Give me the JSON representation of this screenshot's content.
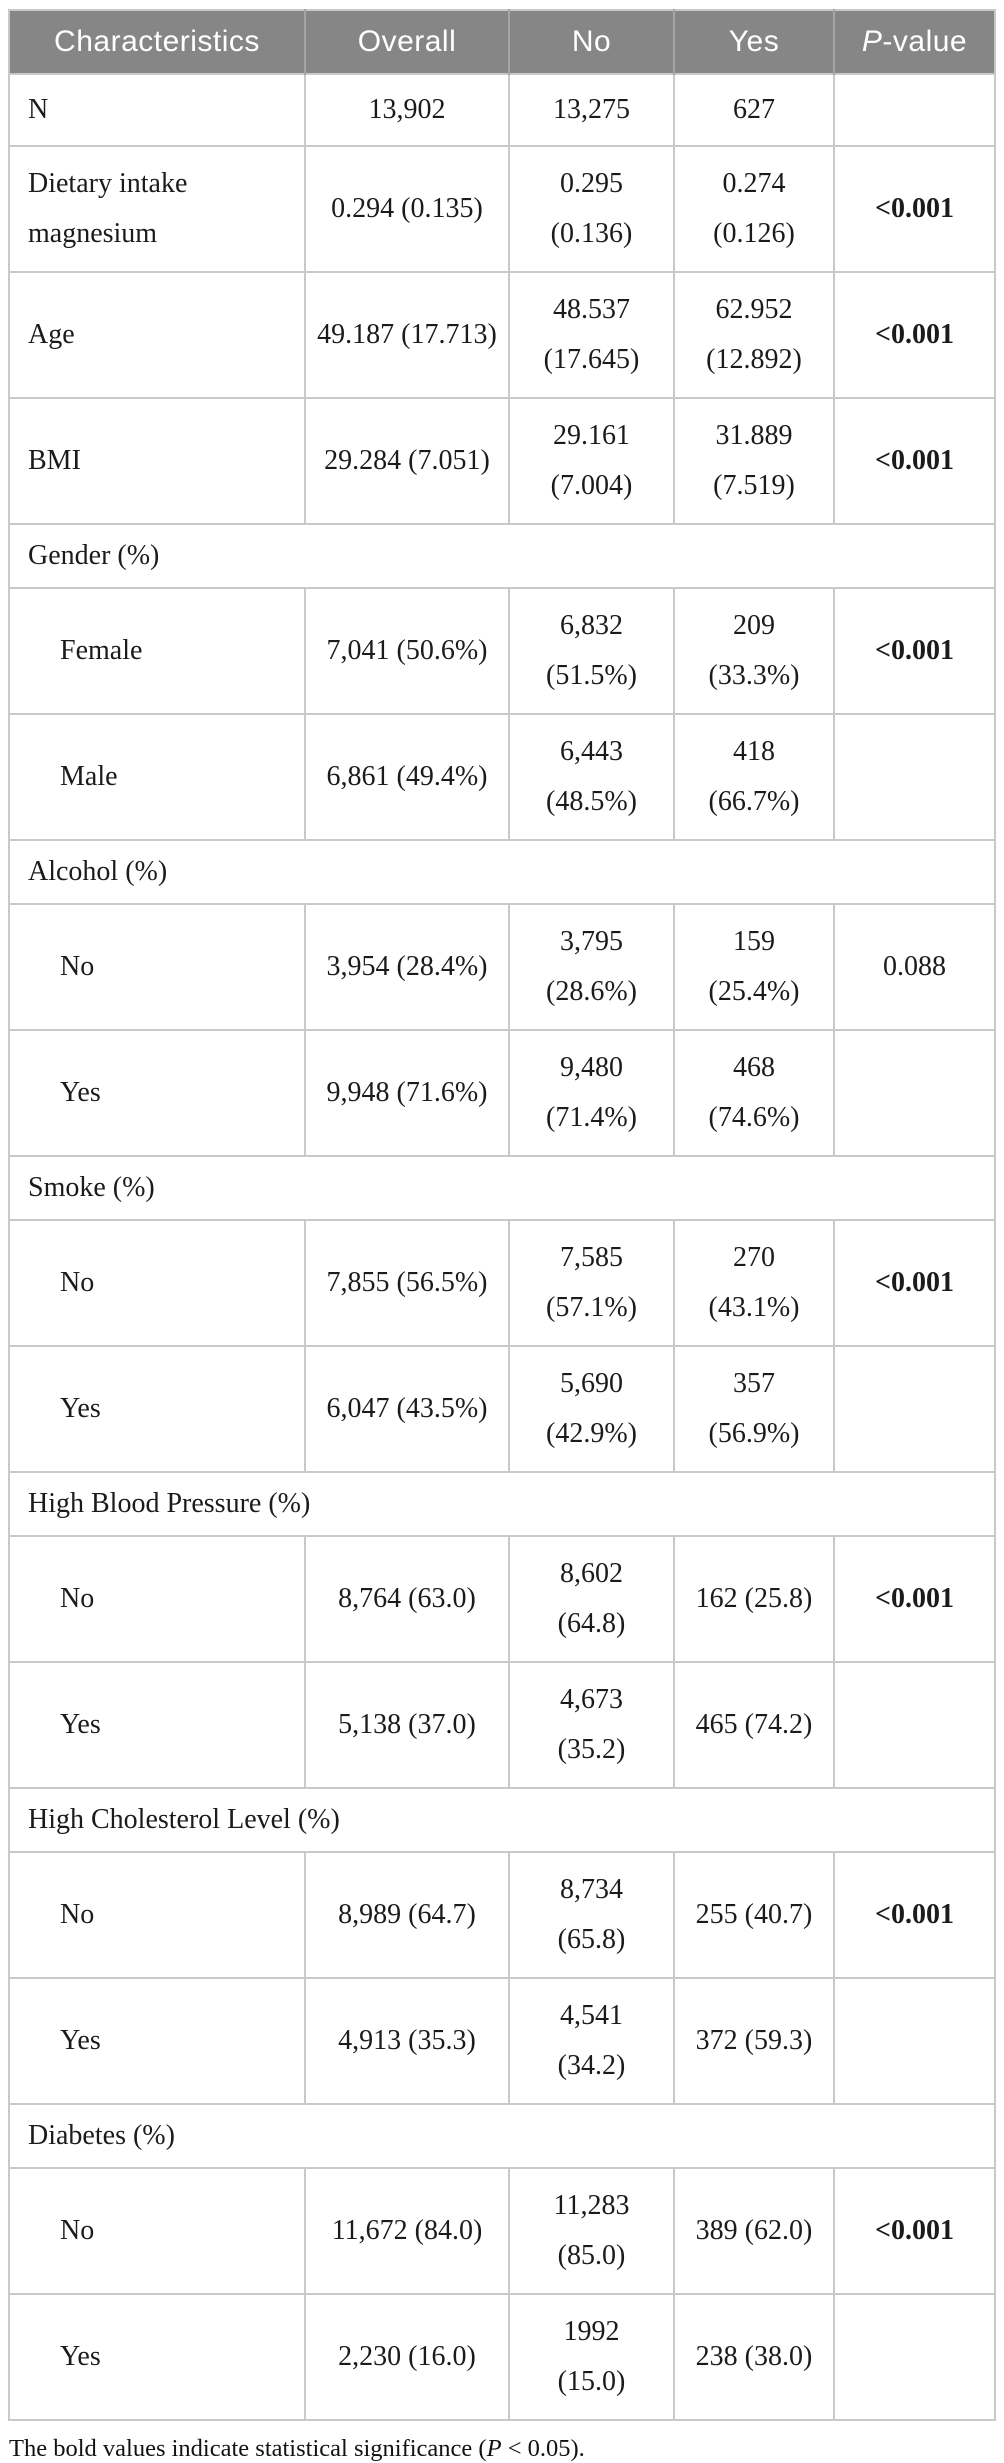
{
  "table": {
    "header": {
      "characteristics": "Characteristics",
      "overall": "Overall",
      "no": "No",
      "yes": "Yes",
      "p_italic": "P",
      "p_rest": "-value"
    },
    "rows": [
      {
        "type": "data",
        "compact": true,
        "indent": false,
        "label": "N",
        "overall": "13,902",
        "no": "13,275",
        "yes": "627",
        "p": "",
        "p_bold": false
      },
      {
        "type": "data",
        "indent": false,
        "label": "Dietary intake\nmagnesium",
        "overall": "0.294 (0.135)",
        "no": "0.295\n(0.136)",
        "yes": "0.274\n(0.126)",
        "p": "<0.001",
        "p_bold": true
      },
      {
        "type": "data",
        "indent": false,
        "label": "Age",
        "overall": "49.187 (17.713)",
        "no": "48.537\n(17.645)",
        "yes": "62.952\n(12.892)",
        "p": "<0.001",
        "p_bold": true
      },
      {
        "type": "data",
        "indent": false,
        "label": "BMI",
        "overall": "29.284 (7.051)",
        "no": "29.161\n(7.004)",
        "yes": "31.889\n(7.519)",
        "p": "<0.001",
        "p_bold": true
      },
      {
        "type": "section",
        "label": "Gender (%)"
      },
      {
        "type": "data",
        "indent": true,
        "label": "Female",
        "overall": "7,041 (50.6%)",
        "no": "6,832\n(51.5%)",
        "yes": "209\n(33.3%)",
        "p": "<0.001",
        "p_bold": true
      },
      {
        "type": "data",
        "indent": true,
        "label": "Male",
        "overall": "6,861 (49.4%)",
        "no": "6,443\n(48.5%)",
        "yes": "418\n(66.7%)",
        "p": "",
        "p_bold": false
      },
      {
        "type": "section",
        "label": "Alcohol (%)"
      },
      {
        "type": "data",
        "indent": true,
        "label": "No",
        "overall": "3,954 (28.4%)",
        "no": "3,795\n(28.6%)",
        "yes": "159\n(25.4%)",
        "p": "0.088",
        "p_bold": false
      },
      {
        "type": "data",
        "indent": true,
        "label": "Yes",
        "overall": "9,948 (71.6%)",
        "no": "9,480\n(71.4%)",
        "yes": "468\n(74.6%)",
        "p": "",
        "p_bold": false
      },
      {
        "type": "section",
        "label": "Smoke (%)"
      },
      {
        "type": "data",
        "indent": true,
        "label": "No",
        "overall": "7,855 (56.5%)",
        "no": "7,585\n(57.1%)",
        "yes": "270\n(43.1%)",
        "p": "<0.001",
        "p_bold": true
      },
      {
        "type": "data",
        "indent": true,
        "label": "Yes",
        "overall": "6,047 (43.5%)",
        "no": "5,690\n(42.9%)",
        "yes": "357\n(56.9%)",
        "p": "",
        "p_bold": false
      },
      {
        "type": "section",
        "label": "High Blood Pressure (%)"
      },
      {
        "type": "data",
        "indent": true,
        "label": "No",
        "overall": "8,764 (63.0)",
        "no": "8,602\n(64.8)",
        "yes": "162 (25.8)",
        "p": "<0.001",
        "p_bold": true
      },
      {
        "type": "data",
        "indent": true,
        "label": "Yes",
        "overall": "5,138 (37.0)",
        "no": "4,673\n(35.2)",
        "yes": "465 (74.2)",
        "p": "",
        "p_bold": false
      },
      {
        "type": "section",
        "label": "High Cholesterol Level (%)"
      },
      {
        "type": "data",
        "indent": true,
        "label": "No",
        "overall": "8,989 (64.7)",
        "no": "8,734\n(65.8)",
        "yes": "255 (40.7)",
        "p": "<0.001",
        "p_bold": true
      },
      {
        "type": "data",
        "indent": true,
        "label": "Yes",
        "overall": "4,913 (35.3)",
        "no": "4,541\n(34.2)",
        "yes": "372 (59.3)",
        "p": "",
        "p_bold": false
      },
      {
        "type": "section",
        "label": "Diabetes (%)"
      },
      {
        "type": "data",
        "indent": true,
        "label": "No",
        "overall": "11,672 (84.0)",
        "no": "11,283\n(85.0)",
        "yes": "389 (62.0)",
        "p": "<0.001",
        "p_bold": true
      },
      {
        "type": "data",
        "indent": true,
        "label": "Yes",
        "overall": "2,230 (16.0)",
        "no": "1992\n(15.0)",
        "yes": "238 (38.0)",
        "p": "",
        "p_bold": false
      }
    ]
  },
  "footnote": {
    "prefix": "The bold values indicate statistical significance (",
    "italic_p": "P",
    "suffix": " < 0.05)."
  },
  "colors": {
    "header_background": "#868686",
    "header_text": "#ffffff",
    "border": "#c9c9c9",
    "body_text": "#1b1b1b"
  }
}
